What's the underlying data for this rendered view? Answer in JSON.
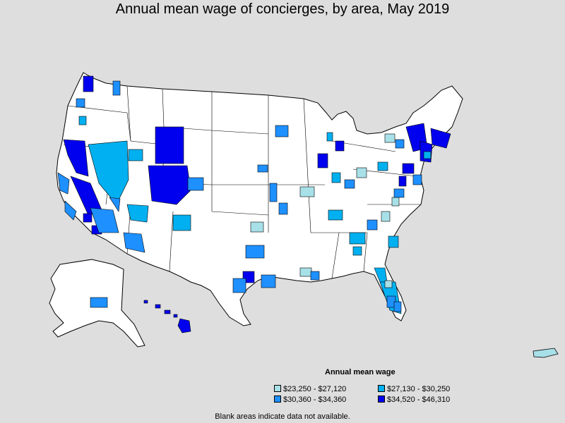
{
  "title": "Annual mean wage of concierges, by area, May 2019",
  "legend": {
    "title": "Annual mean wage",
    "items": [
      {
        "label": "$23,250 - $27,120",
        "color": "#a8e0e8"
      },
      {
        "label": "$27,130 - $30,250",
        "color": "#00b0f0"
      },
      {
        "label": "$30,360 - $34,360",
        "color": "#1e90ff"
      },
      {
        "label": "$34,520 - $46,310",
        "color": "#0000ee"
      }
    ]
  },
  "footnote": "Blank areas indicate data not available.",
  "colors": {
    "background": "#dedede",
    "land": "#ffffff",
    "border": "#000000"
  }
}
